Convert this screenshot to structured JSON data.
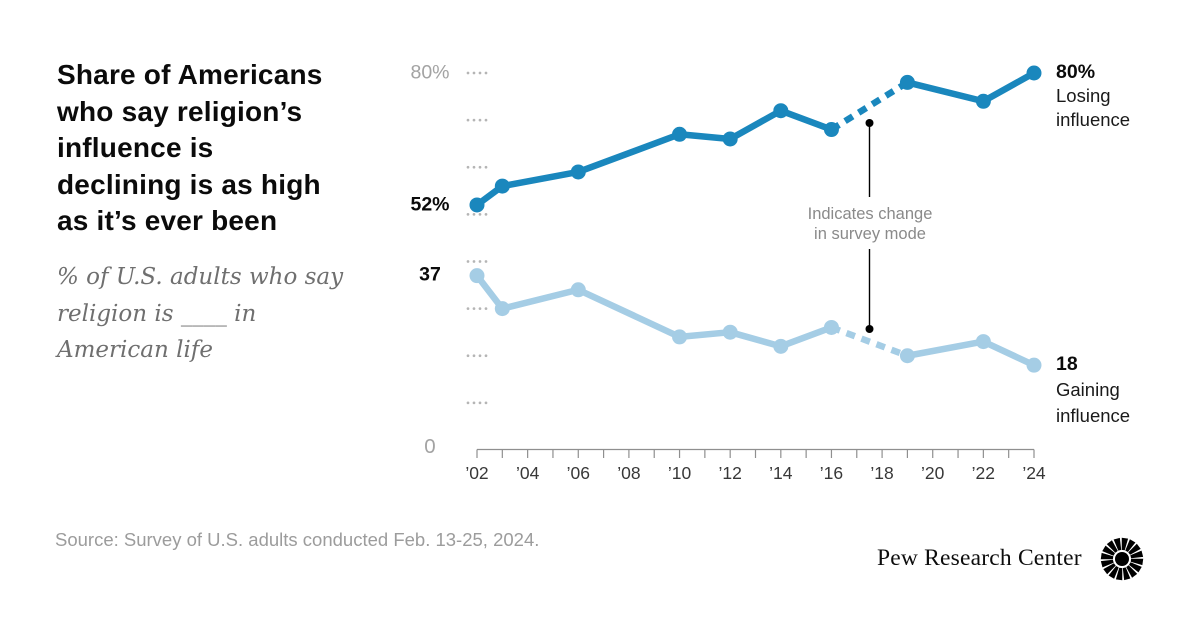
{
  "header": {
    "title_lines": [
      "Share of Americans",
      "who say religion’s",
      "influence is",
      "declining is as high",
      "as it’s ever been"
    ],
    "subtitle_lines": [
      "% of U.S. adults who say",
      "religion is ____ in",
      "American life"
    ]
  },
  "chart_data": {
    "type": "line",
    "title": "Share of Americans who say religion’s influence is declining is as high as it’s ever been",
    "subtitle": "% of U.S. adults who say religion is ____ in American life",
    "x": [
      2002,
      2003,
      2006,
      2010,
      2012,
      2014,
      2016,
      2019,
      2022,
      2024
    ],
    "series": [
      {
        "name": "Losing influence",
        "color": "#1a87bd",
        "values": [
          52,
          56,
          59,
          67,
          66,
          72,
          68,
          78,
          74,
          80
        ],
        "start_label": "52%",
        "end_value_label": "80%",
        "end_name_lines": [
          "Losing",
          "influence"
        ]
      },
      {
        "name": "Gaining influence",
        "color": "#a5cde5",
        "values": [
          37,
          30,
          34,
          24,
          25,
          22,
          26,
          20,
          23,
          18
        ],
        "start_label": "37",
        "end_value_label": "18",
        "end_name_lines": [
          "Gaining",
          "influence"
        ]
      }
    ],
    "dashed_segment_years": [
      2016,
      2019
    ],
    "dashed_meaning": "Indicates change in survey mode",
    "annotation": {
      "lines": [
        "Indicates change",
        "in survey mode"
      ]
    },
    "y_axis": {
      "range": [
        0,
        80
      ],
      "top_label": "80%",
      "zero_label": "0",
      "dotted_tick_values": [
        10,
        20,
        30,
        40,
        50,
        60,
        70,
        80
      ],
      "grid": "dotted-ticks"
    },
    "x_tick_label_years": [
      2002,
      2004,
      2006,
      2008,
      2010,
      2012,
      2014,
      2016,
      2018,
      2020,
      2022,
      2024
    ],
    "x_tick_labels": [
      "’02",
      "’04",
      "’06",
      "’08",
      "’10",
      "’12",
      "’14",
      "’16",
      "’18",
      "’20",
      "’22",
      "’24"
    ],
    "legend_position": "end-of-line labels"
  },
  "footer": {
    "source": "Source: Survey of U.S. adults conducted Feb. 13-25, 2024.",
    "brand": "Pew Research Center"
  },
  "colors": {
    "losing": "#1a87bd",
    "gaining": "#a5cde5",
    "axis": "#8f8f8f",
    "grid_dots": "#b5b5b5",
    "annotation": "#000000",
    "muted_text": "#9c9c9c"
  }
}
